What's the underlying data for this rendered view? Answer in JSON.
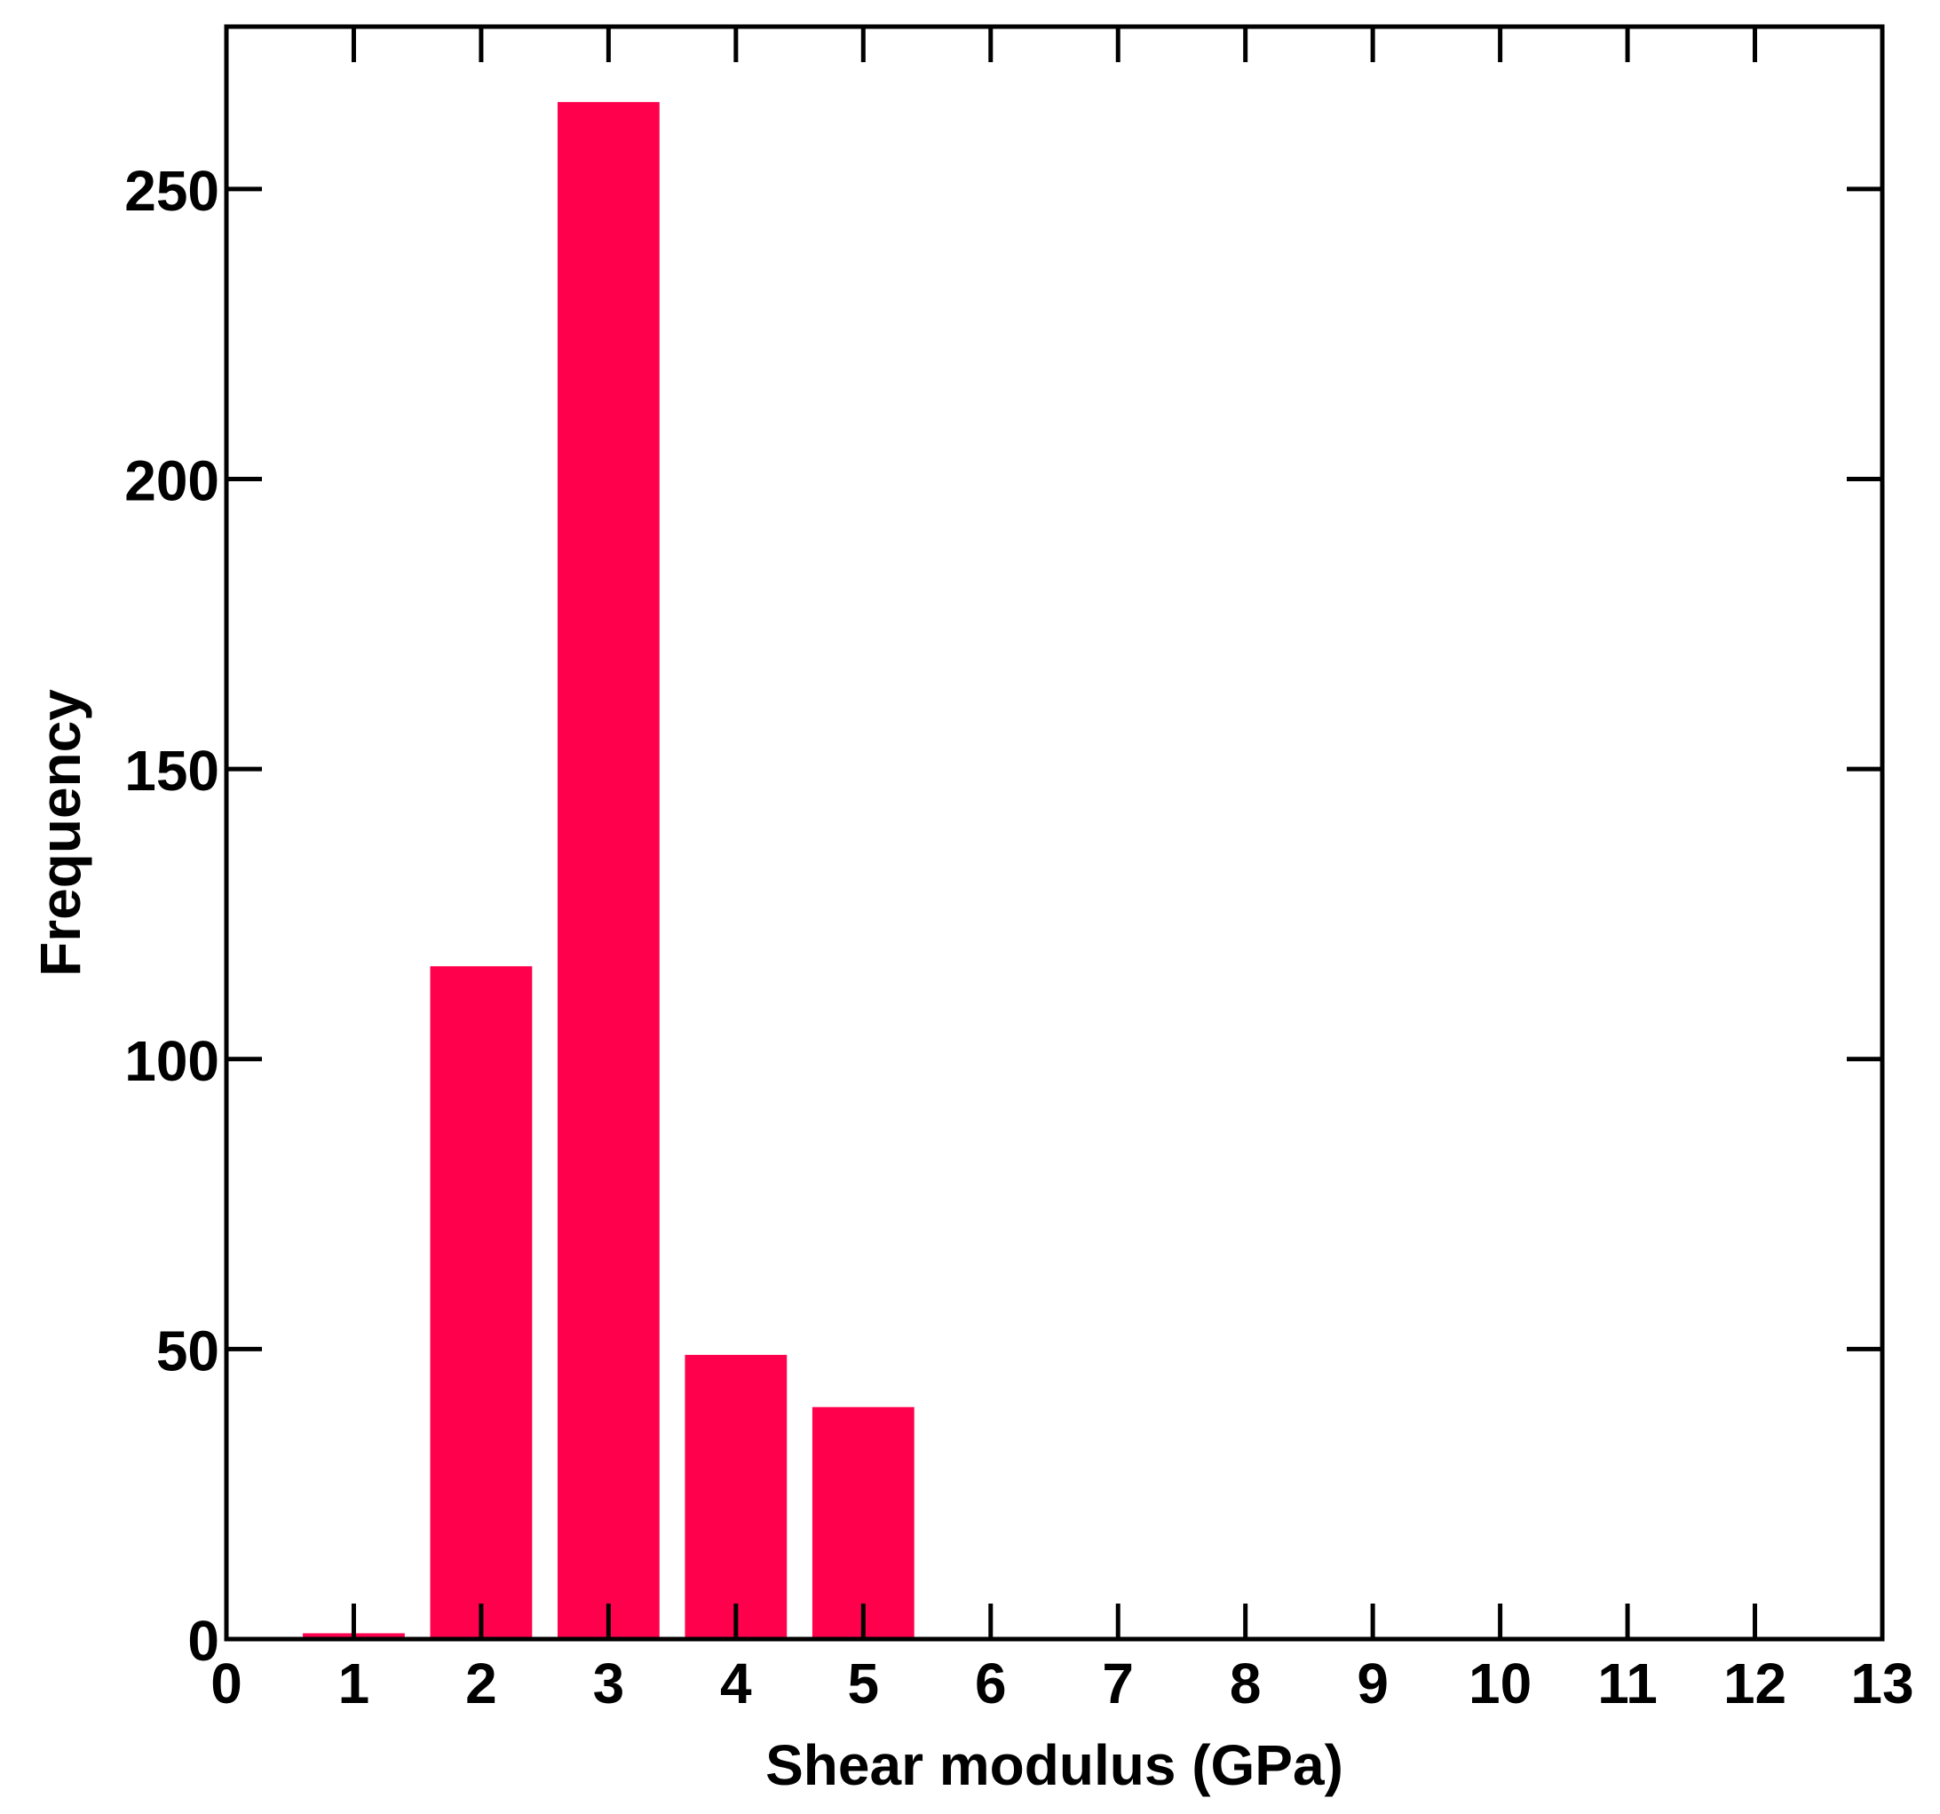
{
  "chart_data": {
    "type": "bar",
    "title": "",
    "xlabel": "Shear modulus (GPa)",
    "ylabel": "Frequency",
    "x": [
      1,
      2,
      3,
      4,
      5
    ],
    "values": [
      1,
      116,
      265,
      49,
      40
    ],
    "xlim": [
      0,
      13
    ],
    "ylim": [
      0,
      278
    ],
    "xticks": [
      0,
      1,
      2,
      3,
      4,
      5,
      6,
      7,
      8,
      9,
      10,
      11,
      12,
      13
    ],
    "yticks": [
      0,
      50,
      100,
      150,
      200,
      250
    ],
    "bar_color": "#ff004d",
    "grid": false,
    "legend": "none"
  }
}
